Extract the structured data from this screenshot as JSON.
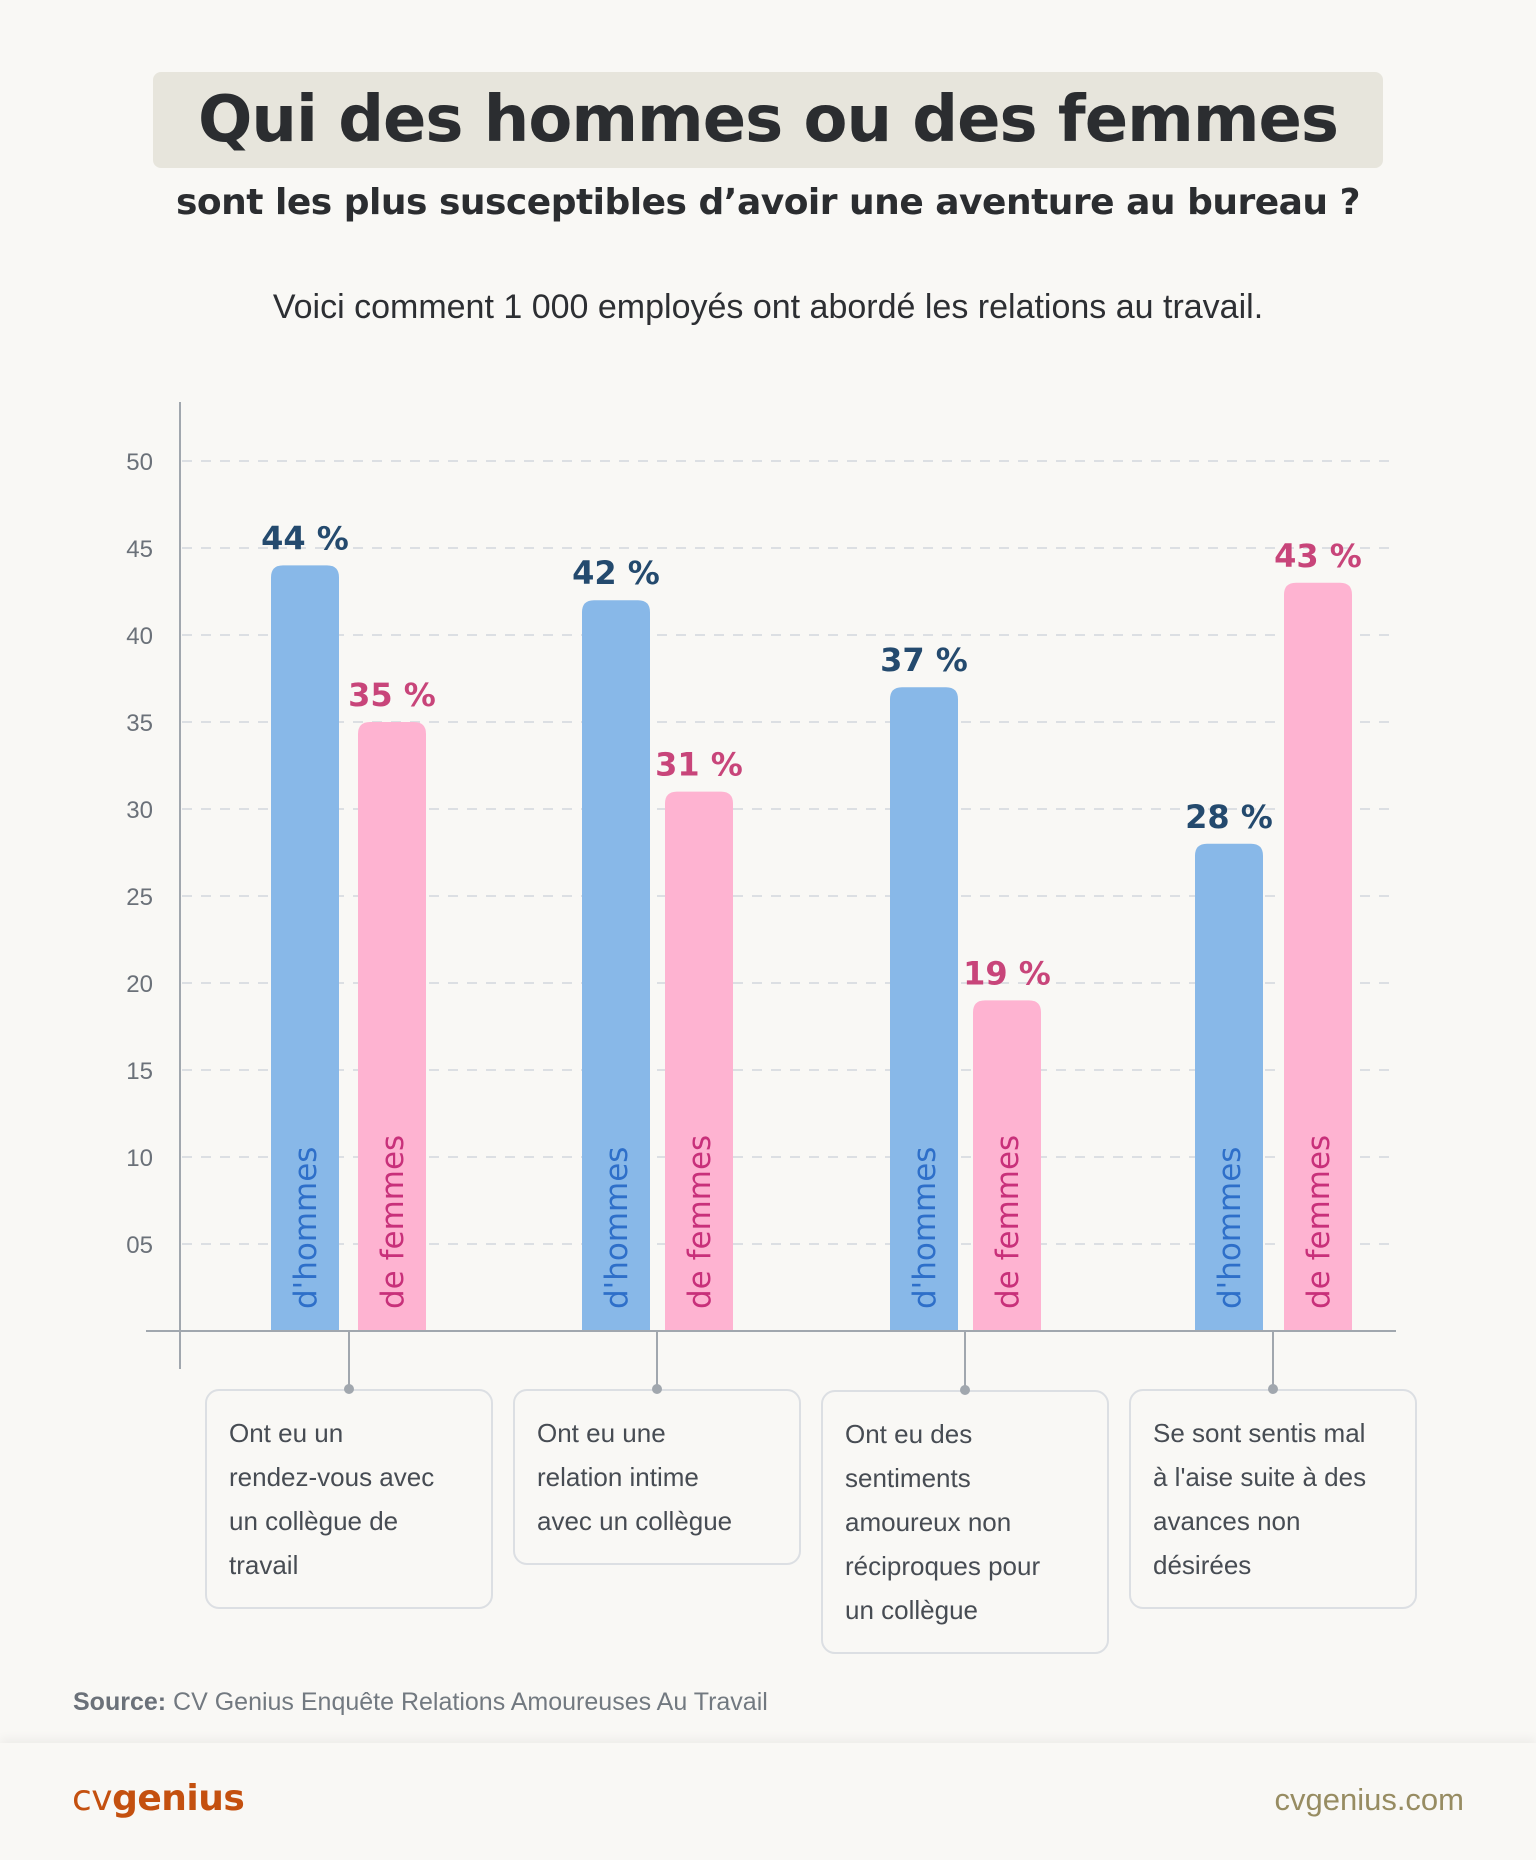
{
  "header": {
    "title": "Qui des hommes ou des femmes",
    "subtitle": "sont les plus susceptibles d’avoir une aventure au bureau ?",
    "description": "Voici comment 1 000 employés ont abordé les relations au travail."
  },
  "colors": {
    "men_bar": "#88b8e8",
    "women_bar": "#feb3d1",
    "men_text": "#244a6e",
    "women_text": "#c8457a",
    "men_inner_label": "#2e6fc9",
    "women_inner_label": "#c8307a",
    "brand": "#c4500f"
  },
  "chart_data": {
    "type": "bar",
    "title": "Qui des hommes ou des femmes sont les plus susceptibles d’avoir une aventure au bureau ?",
    "xlabel": "",
    "ylabel": "",
    "ylim": [
      0,
      50
    ],
    "yticks": [
      5,
      10,
      15,
      20,
      25,
      30,
      35,
      40,
      45,
      50
    ],
    "ytick_labels": [
      "05",
      "10",
      "15",
      "20",
      "25",
      "30",
      "35",
      "40",
      "45",
      "50"
    ],
    "grid": true,
    "categories": [
      [
        "Ont eu un",
        "rendez-vous avec",
        "un collègue de",
        "travail"
      ],
      [
        "Ont eu une",
        "relation intime",
        "avec un collègue"
      ],
      [
        "Ont eu des",
        "sentiments",
        "amoureux non",
        "réciproques pour",
        "un collègue"
      ],
      [
        "Se sont sentis mal",
        "à l'aise suite à des",
        "avances non",
        "désirées"
      ]
    ],
    "series": [
      {
        "name": "d'hommes",
        "values": [
          44,
          42,
          37,
          28
        ],
        "labels": [
          "44 %",
          "42 %",
          "37 %",
          "28 %"
        ]
      },
      {
        "name": "de femmes",
        "values": [
          35,
          31,
          19,
          43
        ],
        "labels": [
          "35 %",
          "31 %",
          "19 %",
          "43 %"
        ]
      }
    ]
  },
  "source": {
    "label": "Source:",
    "text": "CV Genius Enquête Relations Amoureuses Au Travail"
  },
  "footer": {
    "logo_cv": "cv",
    "logo_genius": "genius",
    "site": "cvgenius.com"
  }
}
